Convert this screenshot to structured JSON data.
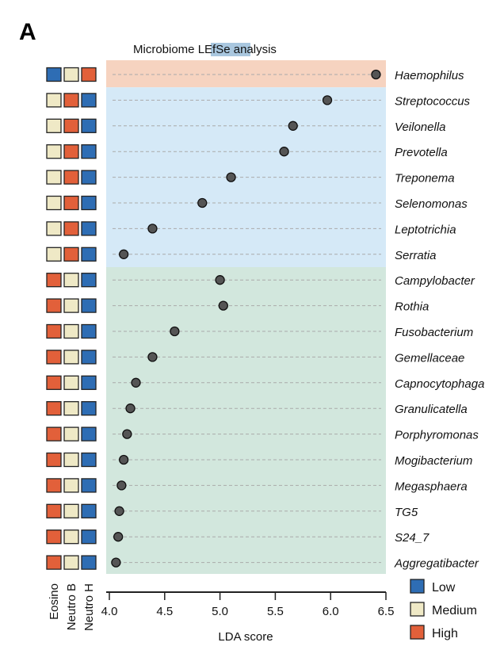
{
  "panel_label": "A",
  "chart_data": {
    "type": "scatter",
    "title_prefix": "Microbiome ",
    "title_highlight": "LEfSe",
    "title_suffix": " analysis",
    "xlabel": "LDA score",
    "xlim": [
      4.0,
      6.5
    ],
    "xticks": [
      "4.0",
      "4.5",
      "5.0",
      "5.5",
      "6.0",
      "6.5"
    ],
    "grid": "dashed horizontal row lines",
    "column_labels": [
      "Eosino",
      "Neutro B",
      "Neutro H"
    ],
    "legend": [
      {
        "label": "Low",
        "color": "#2e6db4"
      },
      {
        "label": "Medium",
        "color": "#efe9c6"
      },
      {
        "label": "High",
        "color": "#e2603a"
      }
    ],
    "legend_placement": "bottom-right",
    "group_colors": {
      "orange": "#f6d3c0",
      "blue": "#d5e9f7",
      "green": "#d2e7dd"
    },
    "rows": [
      {
        "taxon": "Haemophilus",
        "lda": 6.41,
        "group": "orange",
        "levels": [
          "Low",
          "Medium",
          "High"
        ]
      },
      {
        "taxon": "Streptococcus",
        "lda": 5.97,
        "group": "blue",
        "levels": [
          "Medium",
          "High",
          "Low"
        ]
      },
      {
        "taxon": "Veilonella",
        "lda": 5.66,
        "group": "blue",
        "levels": [
          "Medium",
          "High",
          "Low"
        ]
      },
      {
        "taxon": "Prevotella",
        "lda": 5.58,
        "group": "blue",
        "levels": [
          "Medium",
          "High",
          "Low"
        ]
      },
      {
        "taxon": "Treponema",
        "lda": 5.1,
        "group": "blue",
        "levels": [
          "Medium",
          "High",
          "Low"
        ]
      },
      {
        "taxon": "Selenomonas",
        "lda": 4.84,
        "group": "blue",
        "levels": [
          "Medium",
          "High",
          "Low"
        ]
      },
      {
        "taxon": "Leptotrichia",
        "lda": 4.39,
        "group": "blue",
        "levels": [
          "Medium",
          "High",
          "Low"
        ]
      },
      {
        "taxon": "Serratia",
        "lda": 4.13,
        "group": "blue",
        "levels": [
          "Medium",
          "High",
          "Low"
        ]
      },
      {
        "taxon": "Campylobacter",
        "lda": 5.0,
        "group": "green",
        "levels": [
          "High",
          "Medium",
          "Low"
        ]
      },
      {
        "taxon": "Rothia",
        "lda": 5.03,
        "group": "green",
        "levels": [
          "High",
          "Medium",
          "Low"
        ]
      },
      {
        "taxon": "Fusobacterium",
        "lda": 4.59,
        "group": "green",
        "levels": [
          "High",
          "Medium",
          "Low"
        ]
      },
      {
        "taxon": "Gemellaceae",
        "lda": 4.39,
        "group": "green",
        "levels": [
          "High",
          "Medium",
          "Low"
        ]
      },
      {
        "taxon": "Capnocytophaga",
        "lda": 4.24,
        "group": "green",
        "levels": [
          "High",
          "Medium",
          "Low"
        ]
      },
      {
        "taxon": "Granulicatella",
        "lda": 4.19,
        "group": "green",
        "levels": [
          "High",
          "Medium",
          "Low"
        ]
      },
      {
        "taxon": "Porphyromonas",
        "lda": 4.16,
        "group": "green",
        "levels": [
          "High",
          "Medium",
          "Low"
        ]
      },
      {
        "taxon": "Mogibacterium",
        "lda": 4.13,
        "group": "green",
        "levels": [
          "High",
          "Medium",
          "Low"
        ]
      },
      {
        "taxon": "Megasphaera",
        "lda": 4.11,
        "group": "green",
        "levels": [
          "High",
          "Medium",
          "Low"
        ]
      },
      {
        "taxon": "TG5",
        "lda": 4.09,
        "group": "green",
        "levels": [
          "High",
          "Medium",
          "Low"
        ]
      },
      {
        "taxon": "S24_7",
        "lda": 4.08,
        "group": "green",
        "levels": [
          "High",
          "Medium",
          "Low"
        ]
      },
      {
        "taxon": "Aggregatibacter",
        "lda": 4.06,
        "group": "green",
        "levels": [
          "High",
          "Medium",
          "Low"
        ]
      }
    ]
  }
}
